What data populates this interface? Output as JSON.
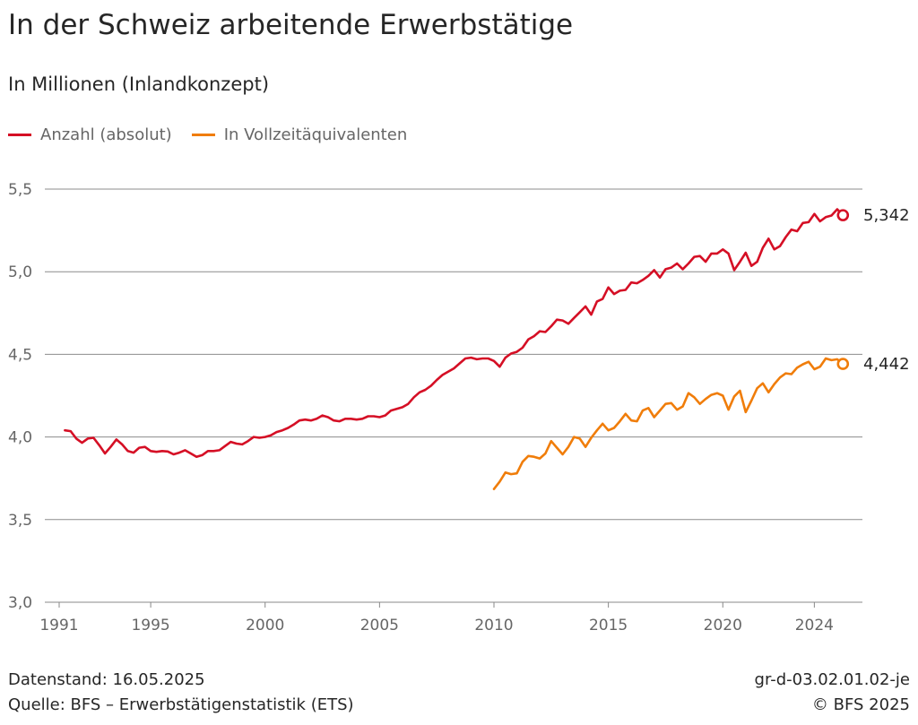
{
  "header": {
    "title": "In der Schweiz arbeitende Erwerbstätige",
    "subtitle": "In Millionen (Inlandkonzept)"
  },
  "legend": [
    {
      "label": "Anzahl (absolut)",
      "color": "#d50f25"
    },
    {
      "label": "In Vollzeitäquivalenten",
      "color": "#f07d0a"
    }
  ],
  "footer": {
    "date_text": "Datenstand: 16.05.2025",
    "source_text": "Quelle: BFS – Erwerbstätigenstatistik (ETS)",
    "code_text": "gr-d-03.02.01.02-je",
    "copyright_text": "© BFS 2025"
  },
  "chart_data": {
    "type": "line",
    "title": "In der Schweiz arbeitende Erwerbstätige",
    "subtitle": "In Millionen (Inlandkonzept)",
    "xlabel": "",
    "ylabel": "",
    "ylim": [
      3.0,
      5.5
    ],
    "yticks": [
      3.0,
      3.5,
      4.0,
      4.5,
      5.0,
      5.5
    ],
    "ytick_labels": [
      "3,0",
      "3,5",
      "4,0",
      "4,5",
      "5,0",
      "5,5"
    ],
    "xlim": [
      1991,
      2025.2
    ],
    "xticks": [
      1991,
      1995,
      2000,
      2005,
      2010,
      2015,
      2020,
      2024
    ],
    "xtick_labels": [
      "1991",
      "1995",
      "2000",
      "2005",
      "2010",
      "2015",
      "2020",
      "2024"
    ],
    "grid": true,
    "legend_position": "top-left",
    "series": [
      {
        "name": "Anzahl (absolut)",
        "color": "#d50f25",
        "end_label": "5,342",
        "points": [
          [
            1991.25,
            4.04
          ],
          [
            1991.5,
            4.035
          ],
          [
            1991.75,
            3.99
          ],
          [
            1992.0,
            3.965
          ],
          [
            1992.25,
            3.99
          ],
          [
            1992.5,
            3.995
          ],
          [
            1992.75,
            3.95
          ],
          [
            1993.0,
            3.9
          ],
          [
            1993.25,
            3.94
          ],
          [
            1993.5,
            3.985
          ],
          [
            1993.75,
            3.955
          ],
          [
            1994.0,
            3.915
          ],
          [
            1994.25,
            3.905
          ],
          [
            1994.5,
            3.935
          ],
          [
            1994.75,
            3.94
          ],
          [
            1995.0,
            3.915
          ],
          [
            1995.25,
            3.91
          ],
          [
            1995.5,
            3.915
          ],
          [
            1995.75,
            3.912
          ],
          [
            1996.0,
            3.895
          ],
          [
            1996.25,
            3.905
          ],
          [
            1996.5,
            3.92
          ],
          [
            1996.75,
            3.9
          ],
          [
            1997.0,
            3.88
          ],
          [
            1997.25,
            3.89
          ],
          [
            1997.5,
            3.915
          ],
          [
            1997.75,
            3.915
          ],
          [
            1998.0,
            3.92
          ],
          [
            1998.25,
            3.945
          ],
          [
            1998.5,
            3.97
          ],
          [
            1998.75,
            3.96
          ],
          [
            1999.0,
            3.955
          ],
          [
            1999.25,
            3.975
          ],
          [
            1999.5,
            4.0
          ],
          [
            1999.75,
            3.995
          ],
          [
            2000.0,
            4.0
          ],
          [
            2000.25,
            4.01
          ],
          [
            2000.5,
            4.03
          ],
          [
            2000.75,
            4.04
          ],
          [
            2001.0,
            4.055
          ],
          [
            2001.25,
            4.075
          ],
          [
            2001.5,
            4.1
          ],
          [
            2001.75,
            4.105
          ],
          [
            2002.0,
            4.1
          ],
          [
            2002.25,
            4.11
          ],
          [
            2002.5,
            4.13
          ],
          [
            2002.75,
            4.12
          ],
          [
            2003.0,
            4.1
          ],
          [
            2003.25,
            4.095
          ],
          [
            2003.5,
            4.11
          ],
          [
            2003.75,
            4.11
          ],
          [
            2004.0,
            4.105
          ],
          [
            2004.25,
            4.11
          ],
          [
            2004.5,
            4.125
          ],
          [
            2004.75,
            4.125
          ],
          [
            2005.0,
            4.12
          ],
          [
            2005.25,
            4.13
          ],
          [
            2005.5,
            4.16
          ],
          [
            2005.75,
            4.17
          ],
          [
            2006.0,
            4.18
          ],
          [
            2006.25,
            4.2
          ],
          [
            2006.5,
            4.24
          ],
          [
            2006.75,
            4.27
          ],
          [
            2007.0,
            4.285
          ],
          [
            2007.25,
            4.31
          ],
          [
            2007.5,
            4.345
          ],
          [
            2007.75,
            4.375
          ],
          [
            2008.0,
            4.395
          ],
          [
            2008.25,
            4.415
          ],
          [
            2008.5,
            4.445
          ],
          [
            2008.75,
            4.475
          ],
          [
            2009.0,
            4.48
          ],
          [
            2009.25,
            4.47
          ],
          [
            2009.5,
            4.475
          ],
          [
            2009.75,
            4.475
          ],
          [
            2010.0,
            4.46
          ],
          [
            2010.25,
            4.425
          ],
          [
            2010.5,
            4.48
          ],
          [
            2010.75,
            4.505
          ],
          [
            2011.0,
            4.515
          ],
          [
            2011.25,
            4.54
          ],
          [
            2011.5,
            4.59
          ],
          [
            2011.75,
            4.61
          ],
          [
            2012.0,
            4.64
          ],
          [
            2012.25,
            4.635
          ],
          [
            2012.5,
            4.67
          ],
          [
            2012.75,
            4.71
          ],
          [
            2013.0,
            4.705
          ],
          [
            2013.25,
            4.685
          ],
          [
            2013.5,
            4.72
          ],
          [
            2013.75,
            4.755
          ],
          [
            2014.0,
            4.79
          ],
          [
            2014.25,
            4.74
          ],
          [
            2014.5,
            4.82
          ],
          [
            2014.75,
            4.835
          ],
          [
            2015.0,
            4.905
          ],
          [
            2015.25,
            4.865
          ],
          [
            2015.5,
            4.885
          ],
          [
            2015.75,
            4.89
          ],
          [
            2016.0,
            4.935
          ],
          [
            2016.25,
            4.93
          ],
          [
            2016.5,
            4.95
          ],
          [
            2016.75,
            4.975
          ],
          [
            2017.0,
            5.01
          ],
          [
            2017.25,
            4.965
          ],
          [
            2017.5,
            5.015
          ],
          [
            2017.75,
            5.025
          ],
          [
            2018.0,
            5.05
          ],
          [
            2018.25,
            5.015
          ],
          [
            2018.5,
            5.05
          ],
          [
            2018.75,
            5.09
          ],
          [
            2019.0,
            5.095
          ],
          [
            2019.25,
            5.06
          ],
          [
            2019.5,
            5.11
          ],
          [
            2019.75,
            5.11
          ],
          [
            2020.0,
            5.135
          ],
          [
            2020.25,
            5.11
          ],
          [
            2020.5,
            5.01
          ],
          [
            2020.75,
            5.06
          ],
          [
            2021.0,
            5.115
          ],
          [
            2021.25,
            5.035
          ],
          [
            2021.5,
            5.06
          ],
          [
            2021.75,
            5.145
          ],
          [
            2022.0,
            5.2
          ],
          [
            2022.25,
            5.135
          ],
          [
            2022.5,
            5.155
          ],
          [
            2022.75,
            5.21
          ],
          [
            2023.0,
            5.255
          ],
          [
            2023.25,
            5.245
          ],
          [
            2023.5,
            5.295
          ],
          [
            2023.75,
            5.3
          ],
          [
            2024.0,
            5.35
          ],
          [
            2024.25,
            5.305
          ],
          [
            2024.5,
            5.33
          ],
          [
            2024.75,
            5.34
          ],
          [
            2025.0,
            5.378
          ],
          [
            2025.25,
            5.342
          ]
        ]
      },
      {
        "name": "In Vollzeitäquivalenten",
        "color": "#f07d0a",
        "end_label": "4,442",
        "points": [
          [
            2010.0,
            3.685
          ],
          [
            2010.25,
            3.73
          ],
          [
            2010.5,
            3.785
          ],
          [
            2010.75,
            3.775
          ],
          [
            2011.0,
            3.78
          ],
          [
            2011.25,
            3.85
          ],
          [
            2011.5,
            3.885
          ],
          [
            2011.75,
            3.88
          ],
          [
            2012.0,
            3.87
          ],
          [
            2012.25,
            3.9
          ],
          [
            2012.5,
            3.975
          ],
          [
            2012.75,
            3.935
          ],
          [
            2013.0,
            3.895
          ],
          [
            2013.25,
            3.94
          ],
          [
            2013.5,
            4.0
          ],
          [
            2013.75,
            3.99
          ],
          [
            2014.0,
            3.94
          ],
          [
            2014.25,
            3.995
          ],
          [
            2014.5,
            4.04
          ],
          [
            2014.75,
            4.08
          ],
          [
            2015.0,
            4.04
          ],
          [
            2015.25,
            4.055
          ],
          [
            2015.5,
            4.095
          ],
          [
            2015.75,
            4.14
          ],
          [
            2016.0,
            4.1
          ],
          [
            2016.25,
            4.095
          ],
          [
            2016.5,
            4.16
          ],
          [
            2016.75,
            4.175
          ],
          [
            2017.0,
            4.12
          ],
          [
            2017.25,
            4.16
          ],
          [
            2017.5,
            4.2
          ],
          [
            2017.75,
            4.205
          ],
          [
            2018.0,
            4.165
          ],
          [
            2018.25,
            4.185
          ],
          [
            2018.5,
            4.265
          ],
          [
            2018.75,
            4.24
          ],
          [
            2019.0,
            4.2
          ],
          [
            2019.25,
            4.23
          ],
          [
            2019.5,
            4.255
          ],
          [
            2019.75,
            4.265
          ],
          [
            2020.0,
            4.25
          ],
          [
            2020.25,
            4.165
          ],
          [
            2020.5,
            4.245
          ],
          [
            2020.75,
            4.28
          ],
          [
            2021.0,
            4.15
          ],
          [
            2021.25,
            4.22
          ],
          [
            2021.5,
            4.295
          ],
          [
            2021.75,
            4.325
          ],
          [
            2022.0,
            4.27
          ],
          [
            2022.25,
            4.32
          ],
          [
            2022.5,
            4.36
          ],
          [
            2022.75,
            4.385
          ],
          [
            2023.0,
            4.38
          ],
          [
            2023.25,
            4.42
          ],
          [
            2023.5,
            4.44
          ],
          [
            2023.75,
            4.455
          ],
          [
            2024.0,
            4.41
          ],
          [
            2024.25,
            4.425
          ],
          [
            2024.5,
            4.475
          ],
          [
            2024.75,
            4.465
          ],
          [
            2025.0,
            4.47
          ],
          [
            2025.25,
            4.442
          ]
        ]
      }
    ]
  }
}
